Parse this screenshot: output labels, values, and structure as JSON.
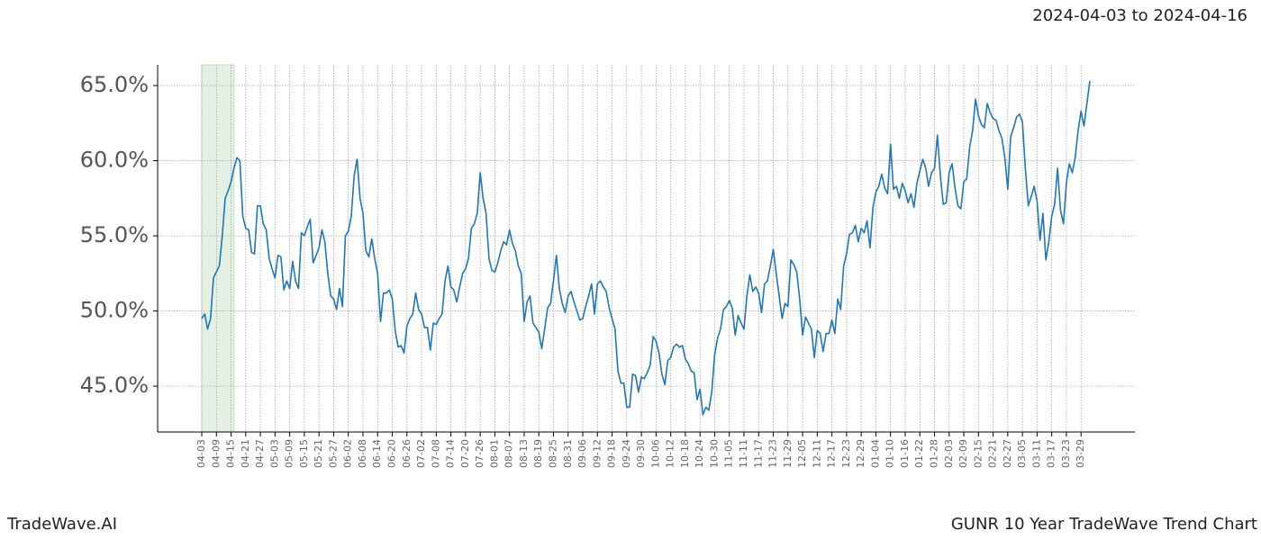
{
  "chart_data": {
    "type": "line",
    "title": "GUNR 10 Year TradeWave Trend Chart",
    "date_range": "2024-04-03 to 2024-04-16",
    "watermark": "TradeWave.AI",
    "color": "#1f77b4",
    "grid": true,
    "shade": {
      "from": 0,
      "to": 11,
      "color": "#e3f0e3"
    },
    "ylim": [
      41.95,
      66.38
    ],
    "yticks": [
      {
        "value": 45,
        "label": "45.0%"
      },
      {
        "value": 50,
        "label": "50.0%"
      },
      {
        "value": 55,
        "label": "55.0%"
      },
      {
        "value": 60,
        "label": "60.0%"
      },
      {
        "value": 65,
        "label": "65.0%"
      }
    ],
    "categories": [
      "04-03",
      null,
      null,
      null,
      null,
      "04-09",
      null,
      null,
      null,
      null,
      "04-15",
      null,
      null,
      null,
      null,
      "04-21",
      null,
      null,
      null,
      null,
      "04-27",
      null,
      null,
      null,
      null,
      "05-03",
      null,
      null,
      null,
      null,
      "05-09",
      null,
      null,
      null,
      null,
      "05-15",
      null,
      null,
      null,
      null,
      "05-21",
      null,
      null,
      null,
      null,
      "05-27",
      null,
      null,
      null,
      null,
      "06-02",
      null,
      null,
      null,
      null,
      "06-08",
      null,
      null,
      null,
      null,
      "06-14",
      null,
      null,
      null,
      null,
      "06-20",
      null,
      null,
      null,
      null,
      "06-26",
      null,
      null,
      null,
      null,
      "07-02",
      null,
      null,
      null,
      null,
      "07-08",
      null,
      null,
      null,
      null,
      "07-14",
      null,
      null,
      null,
      null,
      "07-20",
      null,
      null,
      null,
      null,
      "07-26",
      null,
      null,
      null,
      null,
      "08-01",
      null,
      null,
      null,
      null,
      "08-07",
      null,
      null,
      null,
      null,
      "08-13",
      null,
      null,
      null,
      null,
      "08-19",
      null,
      null,
      null,
      null,
      "08-25",
      null,
      null,
      null,
      null,
      "08-31",
      null,
      null,
      null,
      null,
      "09-06",
      null,
      null,
      null,
      null,
      "09-12",
      null,
      null,
      null,
      null,
      "09-18",
      null,
      null,
      null,
      null,
      "09-24",
      null,
      null,
      null,
      null,
      "09-30",
      null,
      null,
      null,
      null,
      "10-06",
      null,
      null,
      null,
      null,
      "10-12",
      null,
      null,
      null,
      null,
      "10-18",
      null,
      null,
      null,
      null,
      "10-24",
      null,
      null,
      null,
      null,
      "10-30",
      null,
      null,
      null,
      null,
      "11-05",
      null,
      null,
      null,
      null,
      "11-11",
      null,
      null,
      null,
      null,
      "11-17",
      null,
      null,
      null,
      null,
      "11-23",
      null,
      null,
      null,
      null,
      "11-29",
      null,
      null,
      null,
      null,
      "12-05",
      null,
      null,
      null,
      null,
      "12-11",
      null,
      null,
      null,
      null,
      "12-17",
      null,
      null,
      null,
      null,
      "12-23",
      null,
      null,
      null,
      null,
      "12-29",
      null,
      null,
      null,
      null,
      "01-04",
      null,
      null,
      null,
      null,
      "01-10",
      null,
      null,
      null,
      null,
      "01-16",
      null,
      null,
      null,
      null,
      "01-22",
      null,
      null,
      null,
      null,
      "01-28",
      null,
      null,
      null,
      null,
      "02-03",
      null,
      null,
      null,
      null,
      "02-09",
      null,
      null,
      null,
      null,
      "02-15",
      null,
      null,
      null,
      null,
      "02-21",
      null,
      null,
      null,
      null,
      "02-27",
      null,
      null,
      null,
      null,
      "03-05",
      null,
      null,
      null,
      null,
      "03-11",
      null,
      null,
      null,
      null,
      "03-17",
      null,
      null,
      null,
      null,
      "03-23",
      null,
      null,
      null,
      null,
      "03-29",
      null,
      null,
      null
    ],
    "values": [
      49.5,
      49.8,
      48.8,
      49.5,
      52.2,
      52.6,
      53.0,
      55.0,
      57.5,
      58.0,
      58.6,
      59.5,
      60.2,
      60.0,
      56.3,
      55.5,
      55.4,
      53.9,
      53.8,
      57.0,
      57.0,
      55.8,
      55.4,
      53.5,
      52.8,
      52.2,
      53.7,
      53.6,
      51.4,
      52.0,
      51.5,
      53.3,
      52.0,
      51.5,
      55.2,
      55.0,
      55.6,
      56.1,
      53.2,
      53.7,
      54.2,
      55.4,
      54.6,
      52.5,
      51.0,
      50.8,
      50.1,
      51.5,
      50.3,
      55.0,
      55.3,
      56.3,
      59.0,
      60.1,
      57.5,
      56.5,
      54.0,
      53.6,
      54.8,
      53.5,
      52.5,
      49.3,
      51.2,
      51.2,
      51.4,
      50.8,
      48.7,
      47.6,
      47.7,
      47.2,
      49.0,
      49.5,
      49.8,
      51.2,
      50.1,
      49.8,
      48.9,
      48.9,
      47.4,
      49.2,
      49.1,
      49.5,
      49.8,
      52.0,
      53.0,
      51.6,
      51.4,
      50.6,
      51.6,
      52.5,
      52.8,
      53.5,
      55.5,
      55.8,
      56.5,
      59.2,
      57.5,
      56.5,
      53.5,
      52.7,
      52.6,
      53.2,
      54.0,
      54.6,
      54.4,
      55.4,
      54.5,
      54.0,
      53.0,
      52.5,
      49.3,
      50.6,
      51.0,
      49.2,
      48.9,
      48.6,
      47.5,
      48.8,
      50.2,
      50.5,
      52.0,
      53.7,
      51.5,
      50.5,
      49.9,
      51.0,
      51.3,
      50.6,
      50.0,
      49.4,
      49.5,
      50.3,
      51.0,
      51.8,
      49.8,
      51.8,
      52.0,
      51.6,
      51.3,
      50.2,
      49.5,
      48.8,
      46.0,
      45.2,
      45.2,
      43.6,
      43.6,
      45.8,
      45.7,
      44.6,
      45.6,
      45.5,
      45.9,
      46.4,
      48.3,
      48.0,
      47.2,
      45.8,
      45.1,
      46.7,
      46.9,
      47.6,
      47.8,
      47.6,
      47.7,
      46.8,
      46.5,
      46.0,
      45.9,
      44.1,
      44.8,
      43.1,
      43.6,
      43.4,
      44.6,
      47.1,
      48.2,
      48.8,
      50.1,
      50.3,
      50.7,
      50.2,
      48.4,
      49.7,
      49.2,
      48.8,
      51.0,
      52.4,
      51.3,
      51.6,
      51.2,
      49.9,
      51.8,
      52.0,
      53.0,
      54.1,
      52.5,
      51.0,
      49.5,
      50.5,
      50.3,
      53.4,
      53.1,
      52.6,
      50.8,
      48.4,
      49.6,
      49.2,
      48.8,
      46.9,
      48.7,
      48.5,
      47.3,
      48.5,
      48.5,
      49.4,
      48.5,
      50.8,
      50.1,
      53.0,
      53.8,
      55.1,
      55.2,
      55.7,
      54.6,
      55.5,
      55.2,
      56.0,
      54.2,
      56.9,
      57.9,
      58.3,
      59.1,
      58.2,
      57.8,
      61.1,
      58.1,
      58.3,
      57.5,
      58.5,
      58.0,
      57.2,
      57.8,
      56.9,
      58.5,
      59.3,
      60.1,
      59.5,
      58.3,
      59.2,
      59.5,
      61.7,
      59.0,
      57.1,
      57.2,
      59.2,
      59.8,
      58.2,
      57.0,
      56.8,
      58.6,
      58.8,
      60.9,
      62.0,
      64.1,
      63.0,
      62.4,
      62.2,
      63.8,
      63.2,
      62.8,
      62.7,
      62.0,
      61.5,
      60.2,
      58.1,
      61.6,
      62.2,
      62.9,
      63.1,
      62.6,
      59.5,
      57.0,
      57.6,
      58.3,
      57.3,
      54.7,
      56.5,
      53.4,
      54.6,
      56.3,
      57.1,
      59.5,
      56.7,
      55.8,
      58.5,
      59.8,
      59.2,
      60.2,
      62.0,
      63.3,
      62.3,
      63.8,
      65.3
    ]
  }
}
